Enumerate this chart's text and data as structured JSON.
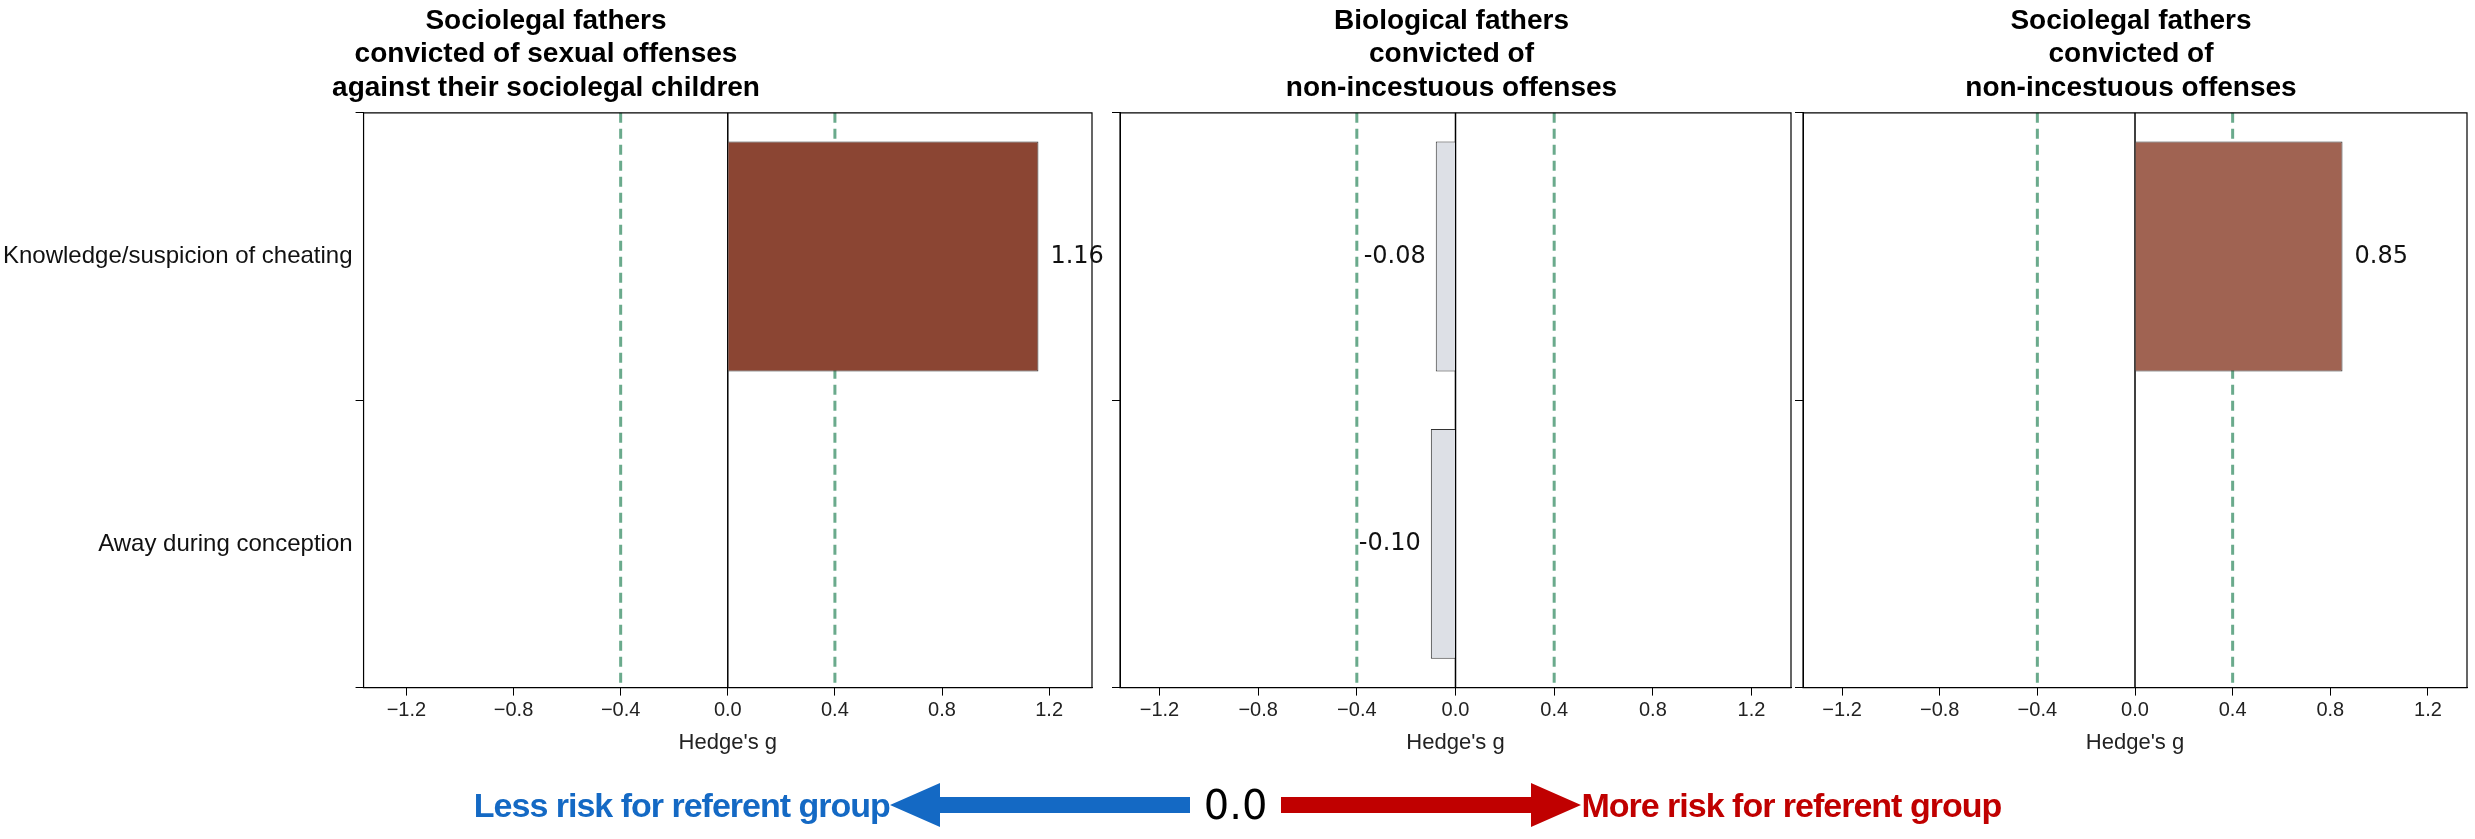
{
  "chart_data": [
    {
      "type": "bar",
      "orientation": "horizontal",
      "title": "Sociolegal fathers\nconvicted of sexual offenses\nagainst their sociolegal children",
      "xlabel": "Hedge's g",
      "categories": [
        "Knowledge/suspicion of cheating",
        "Away during conception"
      ],
      "values": [
        1.16,
        null
      ],
      "value_labels": [
        "1.16",
        null
      ],
      "color": "#8b4533",
      "xlim": [
        -1.36,
        1.36
      ],
      "xticks": [
        {
          "value": -1.2,
          "label": "−1.2"
        },
        {
          "value": -0.8,
          "label": "−0.8"
        },
        {
          "value": -0.4,
          "label": "−0.4"
        },
        {
          "value": 0,
          "label": "0.0"
        },
        {
          "value": 0.4,
          "label": "0.4"
        },
        {
          "value": 0.8,
          "label": "0.8"
        },
        {
          "value": 1.2,
          "label": "1.2"
        }
      ],
      "ref_lines": [
        {
          "axis": "x",
          "value": 0,
          "color": "#000000",
          "line_style": "solid"
        },
        {
          "axis": "x",
          "value": -0.4,
          "color": "#6aaa8c",
          "line_style": "dashed"
        },
        {
          "axis": "x",
          "value": 0.4,
          "color": "#6aaa8c",
          "line_style": "dashed"
        }
      ]
    },
    {
      "type": "bar",
      "orientation": "horizontal",
      "title": "Biological fathers\nconvicted of\nnon-incestuous offenses",
      "xlabel": "Hedge's g",
      "categories": [
        null,
        null
      ],
      "values": [
        -0.08,
        -0.1
      ],
      "value_labels": [
        "-0.08",
        "-0.10"
      ],
      "color": "#dde0e6",
      "tick_labels": "x",
      "xlim": [
        -1.36,
        1.36
      ],
      "xticks": [
        {
          "value": -1.2,
          "label": "−1.2"
        },
        {
          "value": -0.8,
          "label": "−0.8"
        },
        {
          "value": -0.4,
          "label": "−0.4"
        },
        {
          "value": 0,
          "label": "0.0"
        },
        {
          "value": 0.4,
          "label": "0.4"
        },
        {
          "value": 0.8,
          "label": "0.8"
        },
        {
          "value": 1.2,
          "label": "1.2"
        }
      ],
      "ref_lines": [
        {
          "axis": "x",
          "value": 0,
          "color": "#000000",
          "line_style": "solid"
        },
        {
          "axis": "x",
          "value": -0.4,
          "color": "#6aaa8c",
          "line_style": "dashed"
        },
        {
          "axis": "x",
          "value": 0.4,
          "color": "#6aaa8c",
          "line_style": "dashed"
        }
      ]
    },
    {
      "type": "bar",
      "orientation": "horizontal",
      "title": "Sociolegal fathers\nconvicted of\nnon-incestuous offenses",
      "xlabel": "Hedge's g",
      "categories": [
        null,
        null
      ],
      "values": [
        0.85,
        null
      ],
      "value_labels": [
        "0.85",
        null
      ],
      "color": "#a06352",
      "tick_labels": "x",
      "xlim": [
        -1.36,
        1.36
      ],
      "xticks": [
        {
          "value": -1.2,
          "label": "−1.2"
        },
        {
          "value": -0.8,
          "label": "−0.8"
        },
        {
          "value": -0.4,
          "label": "−0.4"
        },
        {
          "value": 0,
          "label": "0.0"
        },
        {
          "value": 0.4,
          "label": "0.4"
        },
        {
          "value": 0.8,
          "label": "0.8"
        },
        {
          "value": 1.2,
          "label": "1.2"
        }
      ],
      "ref_lines": [
        {
          "axis": "x",
          "value": 0,
          "color": "#000000",
          "line_style": "solid"
        },
        {
          "axis": "x",
          "value": -0.4,
          "color": "#6aaa8c",
          "line_style": "dashed"
        },
        {
          "axis": "x",
          "value": 0.4,
          "color": "#6aaa8c",
          "line_style": "dashed"
        }
      ]
    },
    {
      "type": "other",
      "annotations": [
        "Less risk for referent group",
        "0.0",
        "More risk for referent group"
      ]
    }
  ]
}
